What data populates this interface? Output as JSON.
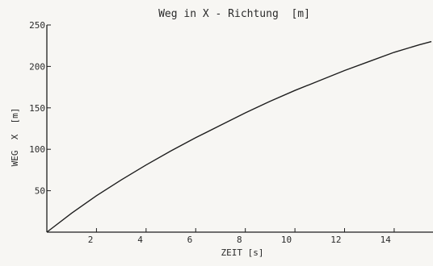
{
  "chart_data": {
    "type": "line",
    "title": "Weg in X - Richtung  [m]",
    "xlabel": "ZEIT [s]",
    "ylabel": "WEG  X  [m]",
    "xlim": [
      0,
      15.5
    ],
    "ylim": [
      0,
      250
    ],
    "x_ticks": [
      2,
      4,
      6,
      8,
      10,
      12,
      14
    ],
    "x_tick_labels": [
      "2",
      "4",
      "6",
      "8",
      "10",
      "12",
      "14"
    ],
    "y_ticks": [
      50,
      100,
      150,
      200,
      250
    ],
    "y_tick_labels": [
      "50",
      "100",
      "150",
      "200",
      "250"
    ],
    "grid": false,
    "series": [
      {
        "x": [
          0,
          1,
          2,
          3,
          4,
          5,
          6,
          7,
          8,
          9,
          10,
          11,
          12,
          13,
          14,
          15,
          15.5
        ],
        "y": [
          0,
          23,
          44,
          63,
          81,
          98,
          114,
          129,
          144,
          158,
          171,
          183,
          195,
          206,
          217,
          226,
          230
        ]
      }
    ],
    "line_color": "#1e1e1e"
  }
}
